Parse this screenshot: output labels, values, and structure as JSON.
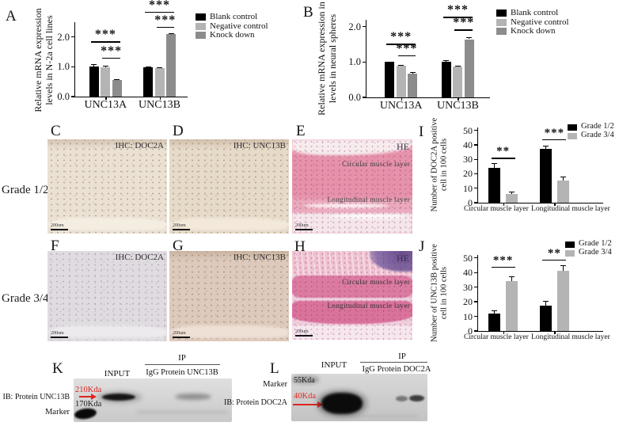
{
  "chart_data": [
    {
      "id": "A",
      "type": "bar",
      "panel_letter": "A",
      "ylabel_lines": [
        "Relative mRNA expression",
        "levels in N-2a cell lines"
      ],
      "yticks": [
        "0.0",
        "1.0",
        "2.0"
      ],
      "ytick_values": [
        0,
        1,
        2
      ],
      "ymax": 2.5,
      "categories": [
        "UNC13A",
        "UNC13B"
      ],
      "series": [
        {
          "name": "Blank control",
          "color": "#000000",
          "values": [
            1.02,
            0.99
          ],
          "errors": [
            0.07,
            0.03
          ]
        },
        {
          "name": "Negative control",
          "color": "#b4b4b4",
          "values": [
            0.98,
            0.95
          ],
          "errors": [
            0.05,
            0.04
          ]
        },
        {
          "name": "Knock down",
          "color": "#8c8c8c",
          "values": [
            0.55,
            2.1
          ],
          "errors": [
            0.04,
            0.04
          ]
        }
      ],
      "annotations": [
        {
          "text": "***",
          "cat": 0,
          "from": 0,
          "to": 2,
          "y": 1.85
        },
        {
          "text": "***",
          "cat": 0,
          "from": 1,
          "to": 2,
          "y": 1.3
        },
        {
          "text": "***",
          "cat": 1,
          "from": 0,
          "to": 2,
          "y": 2.85
        },
        {
          "text": "***",
          "cat": 1,
          "from": 1,
          "to": 2,
          "y": 2.35
        }
      ]
    },
    {
      "id": "B",
      "type": "bar",
      "panel_letter": "B",
      "ylabel_lines": [
        "Relative mRNA expression in",
        "levels in neural spheres"
      ],
      "yticks": [
        "0.0",
        "1.0",
        "2.0"
      ],
      "ytick_values": [
        0,
        1,
        2
      ],
      "ymax": 2.2,
      "categories": [
        "UNC13A",
        "UNC13B"
      ],
      "series": [
        {
          "name": "Blank control",
          "color": "#000000",
          "values": [
            1.0,
            1.02
          ],
          "errors": [
            0.02,
            0.03
          ]
        },
        {
          "name": "Negative control",
          "color": "#b4b4b4",
          "values": [
            0.9,
            0.88
          ],
          "errors": [
            0.02,
            0.02
          ]
        },
        {
          "name": "Knock down",
          "color": "#8c8c8c",
          "values": [
            0.67,
            1.65
          ],
          "errors": [
            0.05,
            0.05
          ]
        }
      ],
      "annotations": [
        {
          "text": "***",
          "cat": 0,
          "from": 0,
          "to": 2,
          "y": 1.52
        },
        {
          "text": "***",
          "cat": 0,
          "from": 1,
          "to": 2,
          "y": 1.2
        },
        {
          "text": "***",
          "cat": 1,
          "from": 0,
          "to": 2,
          "y": 2.28
        },
        {
          "text": "***",
          "cat": 1,
          "from": 1,
          "to": 2,
          "y": 1.92
        }
      ]
    },
    {
      "id": "I",
      "type": "bar",
      "panel_letter": "I",
      "ylabel_lines": [
        "Number of DOC2A positive",
        "cell in 100 cells"
      ],
      "yticks": [
        "0",
        "10",
        "20",
        "30",
        "40",
        "50"
      ],
      "ytick_values": [
        0,
        10,
        20,
        30,
        40,
        50
      ],
      "ymax": 52,
      "categories": [
        "Circular muscle layer",
        "Longitudinal muscle layer"
      ],
      "series": [
        {
          "name": "Grade 1/2",
          "color": "#000000",
          "values": [
            24,
            37
          ],
          "errors": [
            3.5,
            2.5
          ]
        },
        {
          "name": "Grade 3/4",
          "color": "#b4b4b4",
          "values": [
            6,
            15.5
          ],
          "errors": [
            1.5,
            2.5
          ]
        }
      ],
      "annotations": [
        {
          "text": "**",
          "cat": 0,
          "from": 0,
          "to": 1,
          "y": 31
        },
        {
          "text": "***",
          "cat": 1,
          "from": 0,
          "to": 1,
          "y": 44
        }
      ]
    },
    {
      "id": "J",
      "type": "bar",
      "panel_letter": "J",
      "ylabel_lines": [
        "Number of UNC13B positive",
        "cell in 100 cells"
      ],
      "yticks": [
        "0",
        "10",
        "20",
        "30",
        "40",
        "50"
      ],
      "ytick_values": [
        0,
        10,
        20,
        30,
        40,
        50
      ],
      "ymax": 52,
      "categories": [
        "Circular muscle layer",
        "Longitudinal muscle layer"
      ],
      "series": [
        {
          "name": "Grade 1/2",
          "color": "#000000",
          "values": [
            12,
            17.5
          ],
          "errors": [
            2,
            3
          ]
        },
        {
          "name": "Grade 3/4",
          "color": "#b4b4b4",
          "values": [
            34,
            41
          ],
          "errors": [
            3.5,
            4
          ]
        }
      ],
      "annotations": [
        {
          "text": "***",
          "cat": 0,
          "from": 0,
          "to": 1,
          "y": 44
        },
        {
          "text": "**",
          "cat": 1,
          "from": 0,
          "to": 1,
          "y": 49
        }
      ]
    }
  ],
  "row_labels": {
    "grade12": "Grade 1/2",
    "grade34": "Grade 3/4"
  },
  "micrographs": {
    "c": {
      "letter": "C",
      "caption": "IHC: DOC2A",
      "scale_label": "200um"
    },
    "d": {
      "letter": "D",
      "caption": "IHC: UNC13B",
      "scale_label": "200um"
    },
    "e": {
      "letter": "E",
      "caption": "HE",
      "labels": [
        "Circular muscle layer",
        "Longitudinal muscle layer"
      ],
      "scale_label": "200um"
    },
    "f": {
      "letter": "F",
      "caption": "IHC: DOC2A",
      "scale_label": "200um"
    },
    "g": {
      "letter": "G",
      "caption": "IHC: UNC13B",
      "scale_label": "200um"
    },
    "h": {
      "letter": "H",
      "caption": "HE",
      "labels": [
        "Circular muscle layer",
        "Longitudinal muscle layer"
      ],
      "scale_label": "200um"
    }
  },
  "blots": {
    "k": {
      "letter": "K",
      "input_label": "INPUT",
      "ip_label": "IP",
      "ip_lanes": "IgG Protein UNC13B",
      "ib_label": "IB: Protein UNC13B",
      "marker_label": "Marker",
      "mw_red": "210Kda",
      "mw_black": "170Kda"
    },
    "l": {
      "letter": "L",
      "input_label": "INPUT",
      "ip_label": "IP",
      "ip_lanes": "IgG Protein DOC2A",
      "ib_label": "IB: Protein DOC2A",
      "marker_label": "Marker",
      "mw_dark": "55Kda",
      "mw_red": "40Kda"
    }
  }
}
